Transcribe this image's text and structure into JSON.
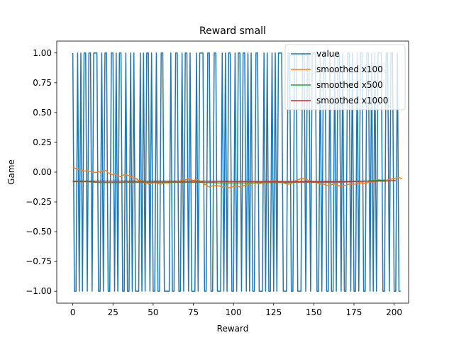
{
  "chart_data": {
    "type": "line",
    "title": "Reward small",
    "xlabel": "Reward",
    "ylabel": "Game",
    "xlim": [
      -10,
      209
    ],
    "ylim": [
      -1.1,
      1.1
    ],
    "xticks": [
      0,
      25,
      50,
      75,
      100,
      125,
      150,
      175,
      200
    ],
    "yticks": [
      -1.0,
      -0.75,
      -0.5,
      -0.25,
      0.0,
      0.25,
      0.5,
      0.75,
      1.0
    ],
    "ytick_labels": [
      "−1.00",
      "−0.75",
      "−0.50",
      "−0.25",
      "0.00",
      "0.25",
      "0.50",
      "0.75",
      "1.00"
    ],
    "grid": false,
    "legend_position": "upper right",
    "series": [
      {
        "name": "value",
        "color": "#1f77b4",
        "y": [
          1,
          -1,
          -1,
          1,
          -1,
          1,
          -1,
          1,
          1,
          -1,
          1,
          1,
          -1,
          1,
          1,
          1,
          -1,
          -1,
          1,
          -1,
          1,
          1,
          -1,
          -1,
          1,
          1,
          -1,
          1,
          -1,
          1,
          1,
          -1,
          -1,
          1,
          -1,
          -1,
          1,
          -1,
          1,
          -1,
          -1,
          -1,
          1,
          -1,
          1,
          -1,
          1,
          1,
          -1,
          1,
          -1,
          -1,
          1,
          -1,
          -1,
          1,
          1,
          -1,
          -1,
          -1,
          -1,
          1,
          -1,
          -1,
          1,
          1,
          -1,
          -1,
          1,
          -1,
          1,
          1,
          -1,
          1,
          -1,
          -1,
          -1,
          1,
          -1,
          1,
          1,
          1,
          -1,
          -1,
          1,
          1,
          -1,
          -1,
          1,
          1,
          -1,
          -1,
          -1,
          1,
          -1,
          1,
          -1,
          1,
          1,
          -1,
          -1,
          1,
          -1,
          1,
          1,
          -1,
          1,
          1,
          -1,
          1,
          -1,
          1,
          -1,
          -1,
          1,
          1,
          -1,
          -1,
          -1,
          1,
          -1,
          1,
          -1,
          -1,
          1,
          -1,
          1,
          -1,
          1,
          1,
          1,
          -1,
          -1,
          -1,
          1,
          1,
          -1,
          -1,
          1,
          1,
          -1,
          -1,
          -1,
          1,
          1,
          -1,
          1,
          1,
          -1,
          1,
          1,
          1,
          -1,
          -1,
          1,
          -1,
          1,
          1,
          -1,
          -1,
          1,
          -1,
          -1,
          1,
          -1,
          1,
          1,
          -1,
          1,
          -1,
          -1,
          1,
          1,
          -1,
          1,
          -1,
          -1,
          1,
          -1,
          1,
          1,
          -1,
          -1,
          1,
          1,
          -1,
          1,
          -1,
          1,
          -1,
          1,
          1,
          1,
          -1,
          -1,
          1,
          1,
          -1,
          1,
          1,
          -1,
          -1,
          1,
          -1,
          -1
        ]
      },
      {
        "name": "smoothed x100",
        "color": "#ff7f0e",
        "y": [
          0.04,
          0.035,
          0.03,
          0.025,
          0.02,
          0.02,
          0.015,
          0.01,
          0.01,
          0.015,
          0.01,
          0.005,
          0.0,
          0.0,
          -0.005,
          0.0,
          0.005,
          0.0,
          0.005,
          0.01,
          0.015,
          0.01,
          -0.005,
          -0.01,
          -0.02,
          -0.02,
          -0.015,
          -0.02,
          -0.03,
          -0.035,
          -0.04,
          -0.03,
          -0.02,
          -0.02,
          -0.025,
          -0.03,
          -0.035,
          -0.04,
          -0.045,
          -0.05,
          -0.06,
          -0.07,
          -0.07,
          -0.08,
          -0.085,
          -0.09,
          -0.09,
          -0.1,
          -0.095,
          -0.095,
          -0.09,
          -0.085,
          -0.09,
          -0.095,
          -0.1,
          -0.1,
          -0.095,
          -0.09,
          -0.09,
          -0.09,
          -0.09,
          -0.085,
          -0.085,
          -0.08,
          -0.08,
          -0.075,
          -0.08,
          -0.075,
          -0.07,
          -0.065,
          -0.065,
          -0.06,
          -0.055,
          -0.06,
          -0.065,
          -0.07,
          -0.065,
          -0.06,
          -0.065,
          -0.075,
          -0.08,
          -0.09,
          -0.1,
          -0.11,
          -0.12,
          -0.125,
          -0.12,
          -0.115,
          -0.11,
          -0.115,
          -0.115,
          -0.115,
          -0.12,
          -0.125,
          -0.12,
          -0.12,
          -0.125,
          -0.13,
          -0.13,
          -0.125,
          -0.12,
          -0.115,
          -0.115,
          -0.12,
          -0.125,
          -0.12,
          -0.115,
          -0.11,
          -0.105,
          -0.1,
          -0.1,
          -0.095,
          -0.09,
          -0.09,
          -0.09,
          -0.095,
          -0.1,
          -0.095,
          -0.09,
          -0.085,
          -0.09,
          -0.085,
          -0.08,
          -0.08,
          -0.075,
          -0.07,
          -0.075,
          -0.08,
          -0.085,
          -0.085,
          -0.085,
          -0.09,
          -0.095,
          -0.1,
          -0.1,
          -0.1,
          -0.095,
          -0.085,
          -0.075,
          -0.07,
          -0.065,
          -0.06,
          -0.055,
          -0.055,
          -0.05,
          -0.06,
          -0.065,
          -0.07,
          -0.075,
          -0.08,
          -0.085,
          -0.085,
          -0.09,
          -0.095,
          -0.1,
          -0.1,
          -0.1,
          -0.105,
          -0.11,
          -0.11,
          -0.11,
          -0.105,
          -0.1,
          -0.1,
          -0.105,
          -0.11,
          -0.115,
          -0.115,
          -0.115,
          -0.11,
          -0.11,
          -0.105,
          -0.1,
          -0.1,
          -0.1,
          -0.1,
          -0.1,
          -0.095,
          -0.09,
          -0.09,
          -0.09,
          -0.095,
          -0.095,
          -0.09,
          -0.085,
          -0.08,
          -0.08,
          -0.08,
          -0.075,
          -0.07,
          -0.065,
          -0.065,
          -0.07,
          -0.075,
          -0.075,
          -0.07,
          -0.065,
          -0.06,
          -0.06,
          -0.055,
          -0.055,
          -0.05,
          -0.05,
          -0.045,
          -0.05,
          -0.055
        ]
      },
      {
        "name": "smoothed x500",
        "color": "#2ca02c",
        "y": [
          -0.08,
          -0.08,
          -0.08,
          -0.08,
          -0.08,
          -0.08,
          -0.08,
          -0.08,
          -0.08,
          -0.08,
          -0.082,
          -0.082,
          -0.084,
          -0.084,
          -0.086,
          -0.086,
          -0.088,
          -0.088,
          -0.088,
          -0.088,
          -0.088,
          -0.088,
          -0.088,
          -0.088,
          -0.088,
          -0.088,
          -0.088,
          -0.088,
          -0.088,
          -0.088,
          -0.088,
          -0.088,
          -0.086,
          -0.086,
          -0.086,
          -0.086,
          -0.086,
          -0.086,
          -0.086,
          -0.086,
          -0.086,
          -0.086,
          -0.086,
          -0.086,
          -0.086,
          -0.086,
          -0.086,
          -0.086,
          -0.086,
          -0.086,
          -0.086,
          -0.086,
          -0.086,
          -0.086,
          -0.086,
          -0.086,
          -0.086,
          -0.086,
          -0.086,
          -0.086,
          -0.086,
          -0.086,
          -0.086,
          -0.086,
          -0.086,
          -0.086,
          -0.086,
          -0.086,
          -0.086,
          -0.086,
          -0.086,
          -0.086,
          -0.086,
          -0.086,
          -0.086,
          -0.086,
          -0.086,
          -0.086,
          -0.086,
          -0.086,
          -0.086,
          -0.086,
          -0.088,
          -0.088,
          -0.088,
          -0.088,
          -0.088,
          -0.088,
          -0.088,
          -0.09,
          -0.09,
          -0.09,
          -0.09,
          -0.09,
          -0.09,
          -0.09,
          -0.09,
          -0.09,
          -0.09,
          -0.09,
          -0.09,
          -0.09,
          -0.09,
          -0.09,
          -0.09,
          -0.09,
          -0.09,
          -0.09,
          -0.09,
          -0.09,
          -0.09,
          -0.09,
          -0.09,
          -0.09,
          -0.088,
          -0.088,
          -0.088,
          -0.088,
          -0.088,
          -0.088,
          -0.088,
          -0.088,
          -0.088,
          -0.088,
          -0.088,
          -0.088,
          -0.088,
          -0.088,
          -0.088,
          -0.088,
          -0.088,
          -0.088,
          -0.088,
          -0.088,
          -0.088,
          -0.088,
          -0.088,
          -0.088,
          -0.086,
          -0.086,
          -0.086,
          -0.086,
          -0.086,
          -0.086,
          -0.086,
          -0.086,
          -0.086,
          -0.086,
          -0.086,
          -0.086,
          -0.086,
          -0.086,
          -0.086,
          -0.086,
          -0.086,
          -0.086,
          -0.086,
          -0.086,
          -0.086,
          -0.086,
          -0.086,
          -0.086,
          -0.086,
          -0.086,
          -0.086,
          -0.086,
          -0.084,
          -0.084,
          -0.084,
          -0.084,
          -0.082,
          -0.082,
          -0.082,
          -0.08,
          -0.08,
          -0.08,
          -0.078,
          -0.078,
          -0.078,
          -0.076,
          -0.076,
          -0.076,
          -0.074,
          -0.074,
          -0.074,
          -0.072,
          -0.072,
          -0.072,
          -0.07,
          -0.07,
          -0.07,
          -0.068,
          -0.068,
          -0.068,
          -0.066,
          -0.066
        ]
      },
      {
        "name": "smoothed x1000",
        "color": "#d62728",
        "y": [
          -0.076,
          -0.076,
          -0.076,
          -0.076,
          -0.076,
          -0.076,
          -0.076,
          -0.076,
          -0.076,
          -0.076,
          -0.076,
          -0.076,
          -0.076,
          -0.076,
          -0.076,
          -0.076,
          -0.076,
          -0.076,
          -0.076,
          -0.076,
          -0.076,
          -0.076,
          -0.076,
          -0.076,
          -0.076,
          -0.076,
          -0.076,
          -0.076,
          -0.076,
          -0.076,
          -0.076,
          -0.076,
          -0.076,
          -0.076,
          -0.076,
          -0.076,
          -0.076,
          -0.076,
          -0.076,
          -0.076,
          -0.076,
          -0.076,
          -0.076,
          -0.076,
          -0.076,
          -0.076,
          -0.076,
          -0.076,
          -0.076,
          -0.076,
          -0.076,
          -0.076,
          -0.076,
          -0.076,
          -0.076,
          -0.076,
          -0.076,
          -0.076,
          -0.076,
          -0.076,
          -0.076,
          -0.076,
          -0.076,
          -0.076,
          -0.076,
          -0.076,
          -0.076,
          -0.076,
          -0.076,
          -0.076,
          -0.076,
          -0.076,
          -0.076,
          -0.076,
          -0.076,
          -0.076,
          -0.076,
          -0.076,
          -0.076,
          -0.076,
          -0.076,
          -0.076,
          -0.076,
          -0.076,
          -0.076,
          -0.077,
          -0.077,
          -0.077,
          -0.077,
          -0.077,
          -0.077,
          -0.077,
          -0.078,
          -0.078,
          -0.078,
          -0.078,
          -0.078,
          -0.078,
          -0.078,
          -0.078,
          -0.078,
          -0.078,
          -0.078,
          -0.078,
          -0.078,
          -0.078,
          -0.078,
          -0.078,
          -0.078,
          -0.078,
          -0.078,
          -0.078,
          -0.078,
          -0.078,
          -0.078,
          -0.078,
          -0.078,
          -0.078,
          -0.078,
          -0.078,
          -0.078,
          -0.078,
          -0.078,
          -0.078,
          -0.078,
          -0.078,
          -0.078,
          -0.078,
          -0.078,
          -0.078,
          -0.078,
          -0.078,
          -0.078,
          -0.078,
          -0.078,
          -0.078,
          -0.078,
          -0.078,
          -0.078,
          -0.078,
          -0.078,
          -0.078,
          -0.078,
          -0.078,
          -0.078,
          -0.078,
          -0.078,
          -0.078,
          -0.078,
          -0.078,
          -0.078,
          -0.078,
          -0.078,
          -0.078,
          -0.078,
          -0.078,
          -0.078,
          -0.078,
          -0.078,
          -0.078,
          -0.078,
          -0.078,
          -0.078,
          -0.078,
          -0.078,
          -0.078,
          -0.078,
          -0.078,
          -0.078,
          -0.078,
          -0.078,
          -0.078,
          -0.078,
          -0.078,
          -0.077,
          -0.077,
          -0.077,
          -0.077,
          -0.077,
          -0.077,
          -0.077,
          -0.077,
          -0.076,
          -0.076,
          -0.076,
          -0.076,
          -0.076,
          -0.076,
          -0.076,
          -0.075,
          -0.075,
          -0.075,
          -0.075,
          -0.075,
          -0.074,
          -0.074,
          -0.074,
          -0.073,
          -0.073,
          -0.073,
          -0.072,
          -0.072
        ]
      }
    ]
  }
}
